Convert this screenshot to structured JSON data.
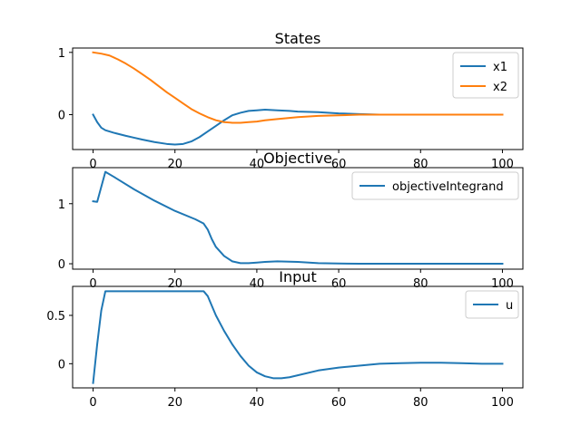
{
  "chart_data": [
    {
      "type": "line",
      "title": "States",
      "xlabel": "",
      "ylabel": "",
      "xlim": [
        -5,
        105
      ],
      "ylim": [
        -0.56,
        1.07
      ],
      "xticks": [
        0,
        20,
        40,
        60,
        80,
        100
      ],
      "yticks": [
        0,
        1
      ],
      "legend": "upper right",
      "grid": false,
      "series": [
        {
          "name": "x1",
          "color": "#1f77b4",
          "x": [
            0,
            1,
            2,
            3,
            5,
            8,
            10,
            12,
            15,
            18,
            20,
            22,
            24,
            26,
            28,
            30,
            32,
            34,
            36,
            38,
            40,
            42,
            45,
            48,
            50,
            55,
            60,
            65,
            70,
            75,
            80,
            85,
            90,
            95,
            100
          ],
          "y": [
            0.0,
            -0.12,
            -0.21,
            -0.25,
            -0.29,
            -0.34,
            -0.37,
            -0.4,
            -0.44,
            -0.47,
            -0.48,
            -0.47,
            -0.43,
            -0.36,
            -0.27,
            -0.18,
            -0.09,
            -0.01,
            0.03,
            0.06,
            0.07,
            0.08,
            0.07,
            0.06,
            0.05,
            0.04,
            0.02,
            0.01,
            0.0,
            0.0,
            0.0,
            0.0,
            0.0,
            0.0,
            0.0
          ]
        },
        {
          "name": "x2",
          "color": "#ff7f0e",
          "x": [
            0,
            2,
            4,
            6,
            8,
            10,
            12,
            14,
            16,
            18,
            20,
            22,
            24,
            26,
            28,
            30,
            32,
            34,
            36,
            38,
            40,
            42,
            45,
            50,
            55,
            60,
            65,
            70,
            75,
            80,
            90,
            100
          ],
          "y": [
            1.0,
            0.98,
            0.95,
            0.89,
            0.82,
            0.74,
            0.65,
            0.56,
            0.46,
            0.36,
            0.27,
            0.18,
            0.09,
            0.02,
            -0.04,
            -0.09,
            -0.12,
            -0.13,
            -0.13,
            -0.12,
            -0.11,
            -0.09,
            -0.07,
            -0.04,
            -0.02,
            -0.01,
            0.0,
            0.0,
            0.0,
            0.0,
            0.0,
            0.0
          ]
        }
      ]
    },
    {
      "type": "line",
      "title": "Objective",
      "xlabel": "",
      "ylabel": "",
      "xlim": [
        -5,
        105
      ],
      "ylim": [
        -0.09,
        1.6
      ],
      "xticks": [
        0,
        20,
        40,
        60,
        80,
        100
      ],
      "yticks": [
        0,
        1
      ],
      "legend": "upper right",
      "grid": false,
      "series": [
        {
          "name": "objectiveIntegrand",
          "color": "#1f77b4",
          "x": [
            0,
            1,
            3,
            5,
            10,
            15,
            20,
            25,
            27,
            28,
            29,
            30,
            32,
            34,
            36,
            38,
            40,
            42,
            45,
            48,
            50,
            55,
            60,
            65,
            70,
            80,
            90,
            100
          ],
          "y": [
            1.04,
            1.03,
            1.53,
            1.45,
            1.24,
            1.05,
            0.88,
            0.74,
            0.67,
            0.57,
            0.41,
            0.28,
            0.13,
            0.04,
            0.01,
            0.01,
            0.02,
            0.03,
            0.04,
            0.035,
            0.03,
            0.01,
            0.005,
            0.0,
            0.0,
            0.0,
            0.0,
            0.0
          ]
        }
      ]
    },
    {
      "type": "line",
      "title": "Input",
      "xlabel": "",
      "ylabel": "",
      "xlim": [
        -5,
        105
      ],
      "ylim": [
        -0.25,
        0.8
      ],
      "xticks": [
        0,
        20,
        40,
        60,
        80,
        100
      ],
      "yticks": [
        0.0,
        0.5
      ],
      "legend": "upper right",
      "grid": false,
      "series": [
        {
          "name": "u",
          "color": "#1f77b4",
          "x": [
            0,
            1,
            2,
            3,
            5,
            10,
            15,
            20,
            25,
            27,
            28,
            29,
            30,
            32,
            34,
            36,
            38,
            40,
            42,
            44,
            46,
            48,
            50,
            55,
            60,
            65,
            70,
            75,
            80,
            85,
            90,
            95,
            100
          ],
          "y": [
            -0.2,
            0.2,
            0.55,
            0.75,
            0.75,
            0.75,
            0.75,
            0.75,
            0.75,
            0.75,
            0.7,
            0.6,
            0.5,
            0.34,
            0.2,
            0.08,
            -0.02,
            -0.09,
            -0.13,
            -0.15,
            -0.15,
            -0.14,
            -0.12,
            -0.07,
            -0.04,
            -0.02,
            0.0,
            0.005,
            0.01,
            0.01,
            0.005,
            0.0,
            0.0
          ]
        }
      ]
    }
  ]
}
